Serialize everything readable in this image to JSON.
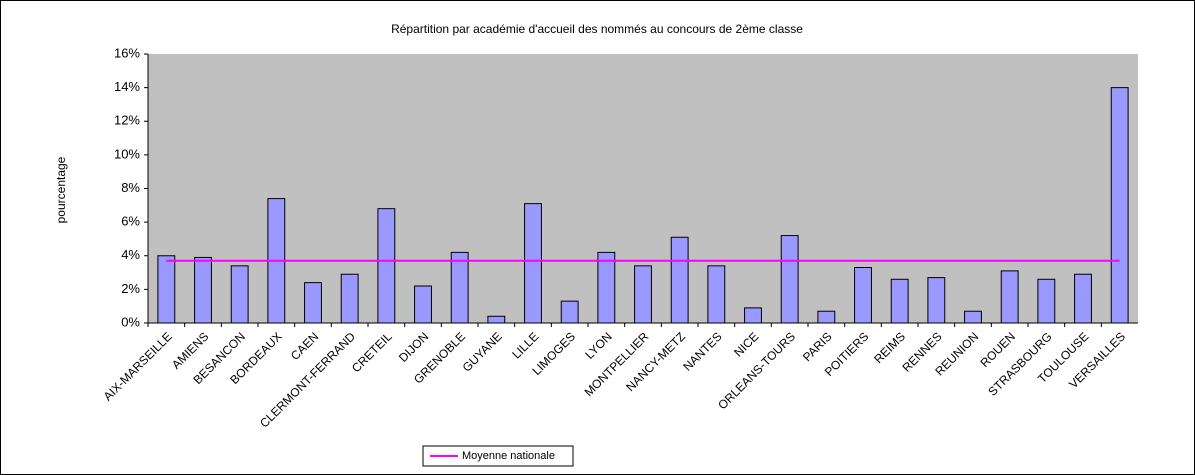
{
  "chart_data": {
    "type": "bar",
    "title": "Répartition par académie d'accueil des nommés au concours de 2ème classe",
    "y_label": "pourcentage",
    "categories": [
      "AIX-MARSEILLE",
      "AMIENS",
      "BESANCON",
      "BORDEAUX",
      "CAEN",
      "CLERMONT-FERRAND",
      "CRETEIL",
      "DIJON",
      "GRENOBLE",
      "GUYANE",
      "LILLE",
      "LIMOGES",
      "LYON",
      "MONTPELLIER",
      "NANCY-METZ",
      "NANTES",
      "NICE",
      "ORLEANS-TOURS",
      "PARIS",
      "POITIERS",
      "REIMS",
      "RENNES",
      "REUNION",
      "ROUEN",
      "STRASBOURG",
      "TOULOUSE",
      "VERSAILLES"
    ],
    "values": [
      4.0,
      3.9,
      3.4,
      7.4,
      2.4,
      2.9,
      6.8,
      2.2,
      4.2,
      0.4,
      7.1,
      1.3,
      4.2,
      3.4,
      5.1,
      3.4,
      0.9,
      5.2,
      0.7,
      3.3,
      2.6,
      2.7,
      0.7,
      3.1,
      2.6,
      2.9,
      14.0
    ],
    "color": "#9999ff",
    "reference_line": {
      "name": "Moyenne nationale",
      "value": 3.7,
      "color": "#ff00ff"
    },
    "ylim": [
      0,
      16
    ],
    "yticks": [
      {
        "value": 0,
        "label": "0%"
      },
      {
        "value": 2,
        "label": "2%"
      },
      {
        "value": 4,
        "label": "4%"
      },
      {
        "value": 6,
        "label": "6%"
      },
      {
        "value": 8,
        "label": "8%"
      },
      {
        "value": 10,
        "label": "10%"
      },
      {
        "value": 12,
        "label": "12%"
      },
      {
        "value": 14,
        "label": "14%"
      },
      {
        "value": 16,
        "label": "16%"
      }
    ],
    "grid": false,
    "legend": "bottom"
  }
}
